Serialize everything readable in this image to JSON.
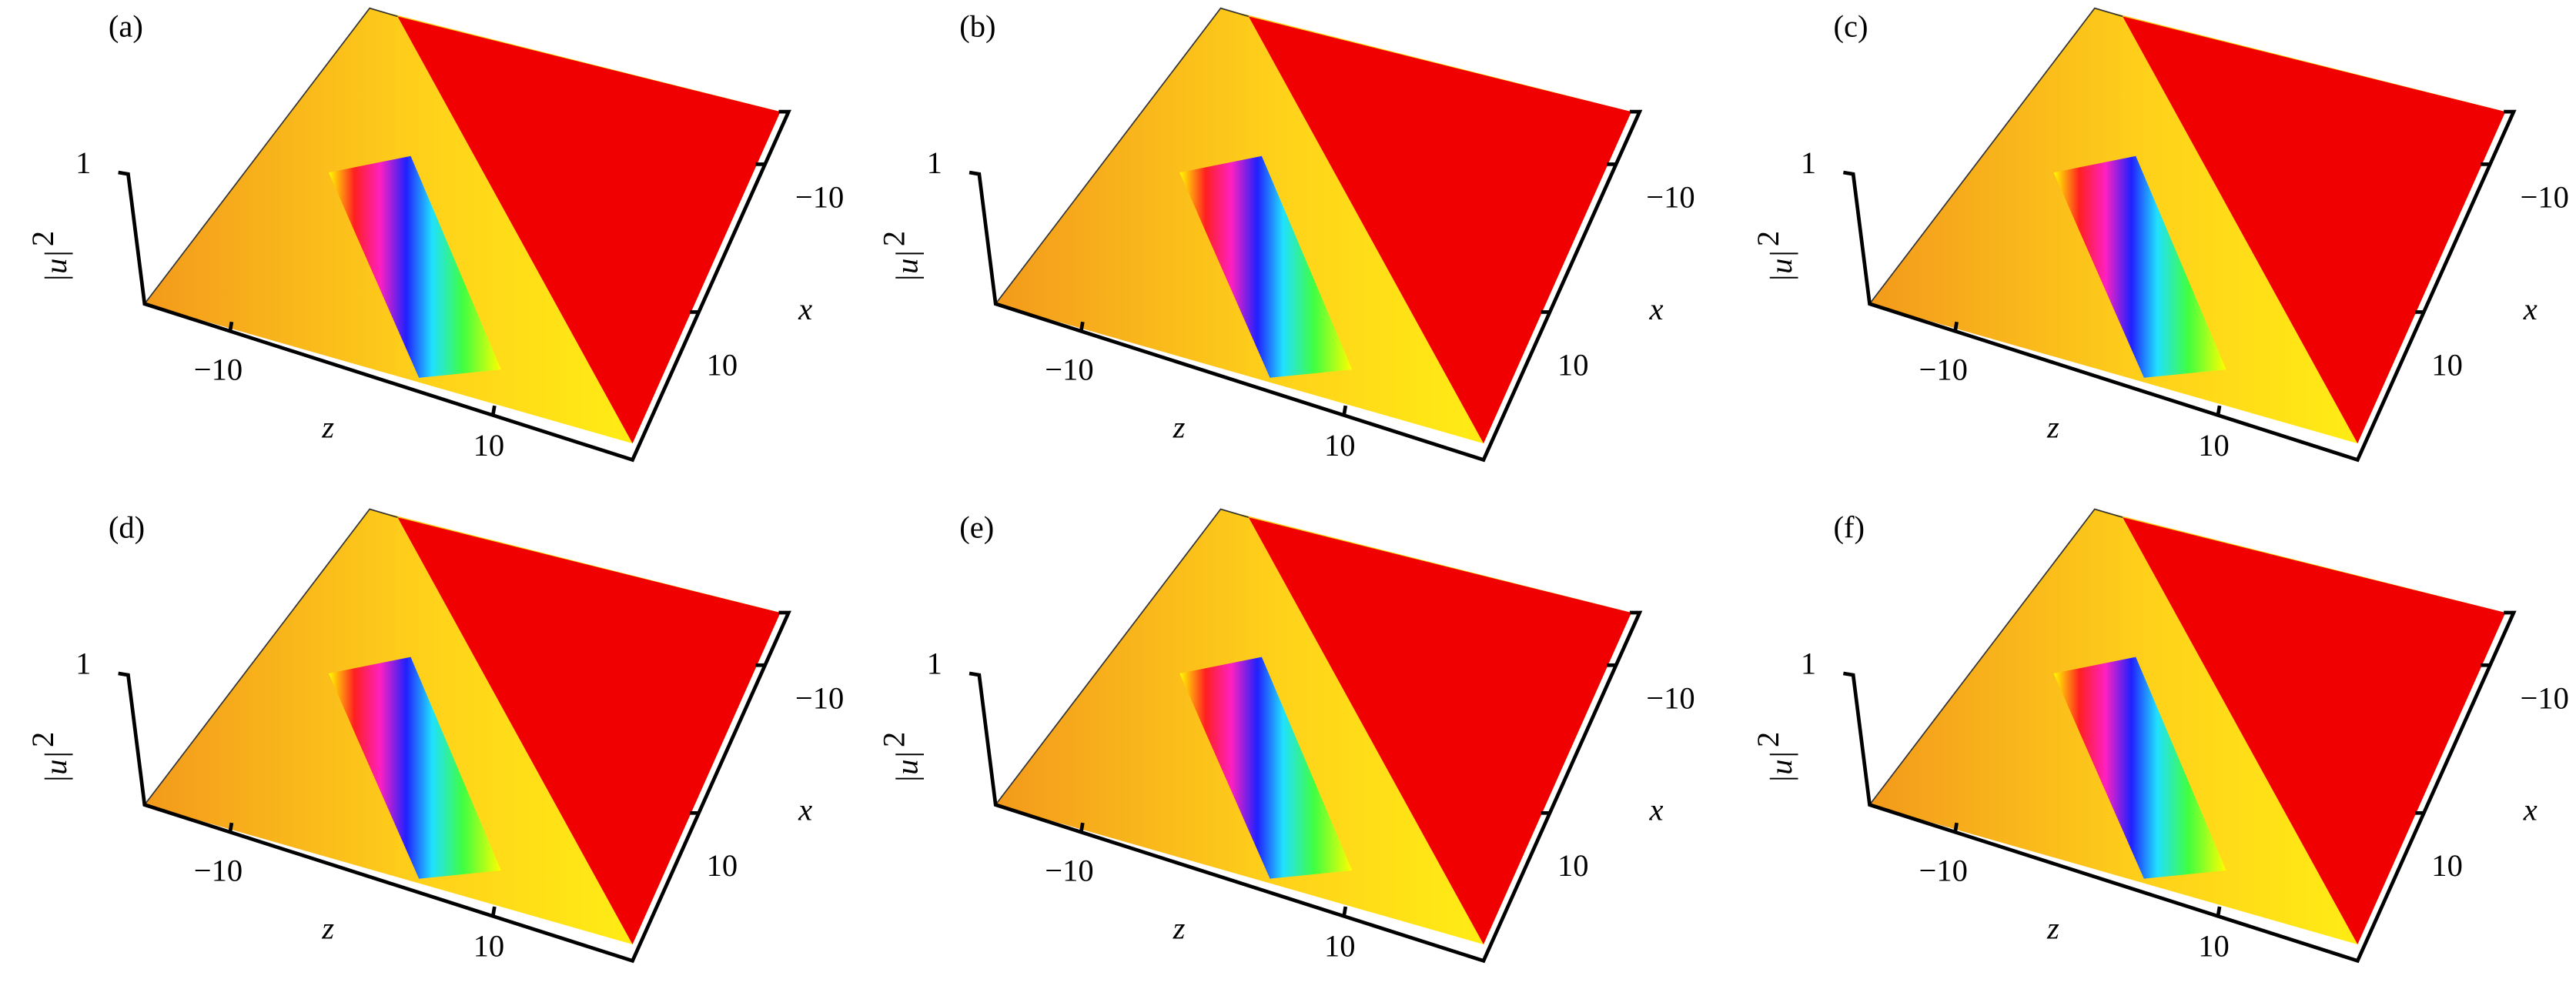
{
  "panels": [
    {
      "label": "(a)",
      "ylabel": "|u|",
      "ylabel_power": "2",
      "ytick": "1",
      "zlabel": "z",
      "zticks": [
        "−10",
        "10"
      ],
      "xlabel": "x",
      "xticks": [
        "−10",
        "10"
      ]
    },
    {
      "label": "(b)",
      "ylabel": "|u|",
      "ylabel_power": "2",
      "ytick": "1",
      "zlabel": "z",
      "zticks": [
        "−10",
        "10"
      ],
      "xlabel": "x",
      "xticks": [
        "−10",
        "10"
      ]
    },
    {
      "label": "(c)",
      "ylabel": "|u|",
      "ylabel_power": "2",
      "ytick": "1",
      "zlabel": "z",
      "zticks": [
        "−10",
        "10"
      ],
      "xlabel": "x",
      "xticks": [
        "−10",
        "10"
      ]
    },
    {
      "label": "(d)",
      "ylabel": "|u|",
      "ylabel_power": "2",
      "ytick": "1",
      "zlabel": "z",
      "zticks": [
        "−10",
        "10"
      ],
      "xlabel": "x",
      "xticks": [
        "−10",
        "10"
      ]
    },
    {
      "label": "(e)",
      "ylabel": "|u|",
      "ylabel_power": "2",
      "ytick": "1",
      "zlabel": "z",
      "zticks": [
        "−10",
        "10"
      ],
      "xlabel": "x",
      "xticks": [
        "−10",
        "10"
      ]
    },
    {
      "label": "(f)",
      "ylabel": "|u|",
      "ylabel_power": "2",
      "ytick": "1",
      "zlabel": "z",
      "zticks": [
        "−10",
        "10"
      ],
      "xlabel": "x",
      "xticks": [
        "−10",
        "10"
      ]
    }
  ]
}
